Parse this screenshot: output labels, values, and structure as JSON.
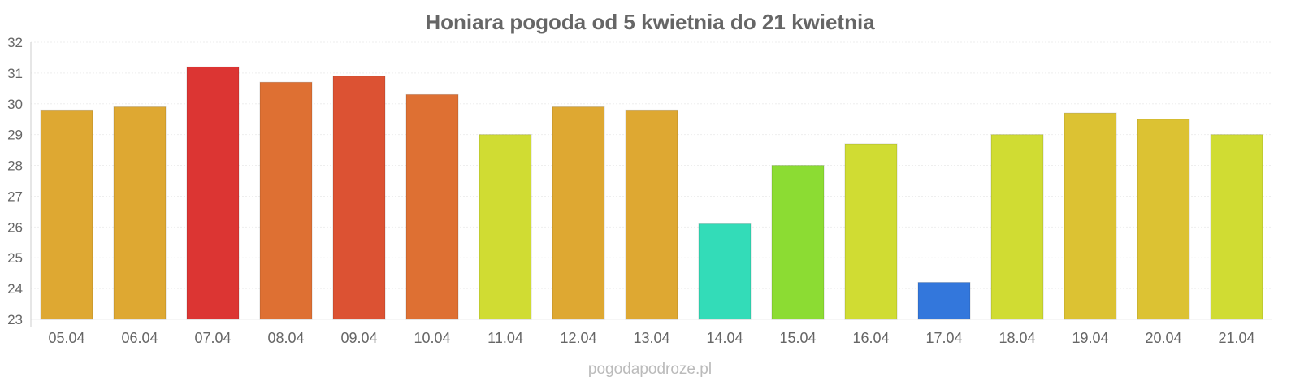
{
  "chart_data": {
    "type": "bar",
    "title": "Honiara pogoda od 5 kwietnia do 21 kwietnia",
    "xlabel": "",
    "ylabel": "",
    "ylim": [
      23,
      32
    ],
    "yticks": [
      23,
      24,
      25,
      26,
      27,
      28,
      29,
      30,
      31,
      32
    ],
    "grid": true,
    "categories": [
      "05.04",
      "06.04",
      "07.04",
      "08.04",
      "09.04",
      "10.04",
      "11.04",
      "12.04",
      "13.04",
      "14.04",
      "15.04",
      "16.04",
      "17.04",
      "18.04",
      "19.04",
      "20.04",
      "21.04"
    ],
    "values": [
      29.8,
      29.9,
      31.2,
      30.7,
      30.9,
      30.3,
      29.0,
      29.9,
      29.8,
      26.1,
      28.0,
      28.7,
      24.2,
      29.0,
      29.7,
      29.5,
      29.0
    ],
    "colors": [
      "#dea832",
      "#dea832",
      "#dc3533",
      "#de7033",
      "#dc5233",
      "#de7033",
      "#d0dc33",
      "#dea832",
      "#dea832",
      "#33dcb8",
      "#8cdc33",
      "#d0dc33",
      "#3377dc",
      "#d0dc33",
      "#dcc233",
      "#dcc233",
      "#d0dc33"
    ]
  },
  "credit": "pogodapodroze.pl"
}
